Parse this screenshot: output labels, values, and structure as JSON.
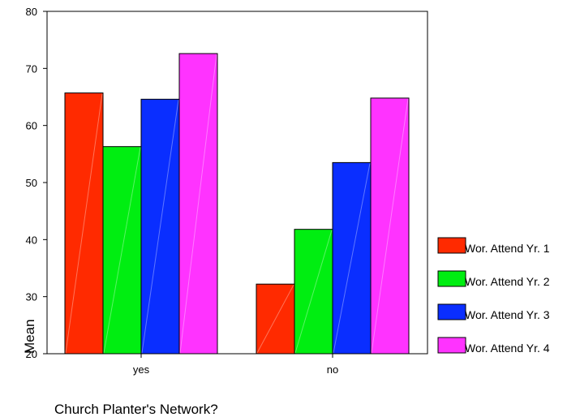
{
  "chart_data": {
    "type": "bar",
    "title": "",
    "xlabel": "Church Planter's Network?",
    "ylabel": "Mean",
    "categories": [
      "yes",
      "no"
    ],
    "ylim": [
      20,
      80
    ],
    "yticks": [
      20,
      30,
      40,
      50,
      60,
      70,
      80
    ],
    "grid": false,
    "legend_position": "right",
    "series": [
      {
        "name": "Wor. Attend Yr. 1",
        "color": "#ff2a00",
        "values": [
          65.7,
          32.2
        ]
      },
      {
        "name": "Wor. Attend Yr. 2",
        "color": "#00ee11",
        "values": [
          56.3,
          41.8
        ]
      },
      {
        "name": "Wor. Attend Yr. 3",
        "color": "#0a2eff",
        "values": [
          64.6,
          53.5
        ]
      },
      {
        "name": "Wor. Attend Yr. 4",
        "color": "#ff33ff",
        "values": [
          72.6,
          64.8
        ]
      }
    ]
  }
}
